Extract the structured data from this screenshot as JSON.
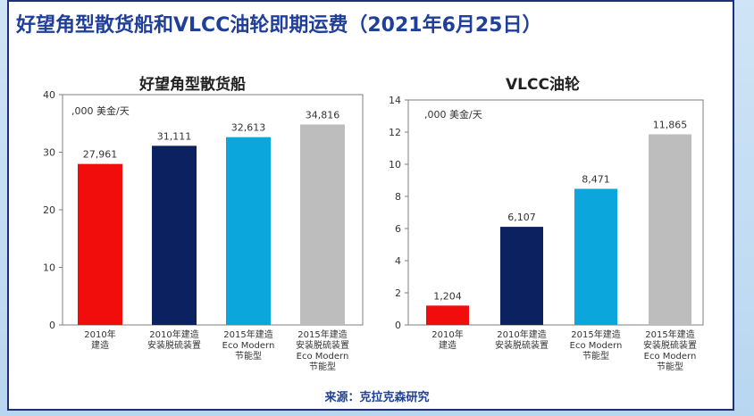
{
  "page": {
    "title": "好望角型散货船和VLCC油轮即期运费（2021年6月25日）",
    "source": "来源：克拉克森研究"
  },
  "chart_data": [
    {
      "type": "bar",
      "title": "好望角型散货船",
      "unit_label": ",000 美金/天",
      "ylim": [
        0,
        40
      ],
      "yticks": [
        0,
        10,
        20,
        30,
        40
      ],
      "categories": [
        [
          "2010年",
          "建造"
        ],
        [
          "2010年建造",
          "安装脱硫装置"
        ],
        [
          "2015年建造",
          "Eco Modern",
          "节能型"
        ],
        [
          "2015年建造",
          "安装脱硫装置",
          "Eco Modern",
          "节能型"
        ]
      ],
      "values": [
        27.961,
        31.111,
        32.613,
        34.816
      ],
      "data_labels": [
        "27,961",
        "31,111",
        "32,613",
        "34,816"
      ],
      "colors": [
        "#f20d0d",
        "#0c2160",
        "#0aa6dc",
        "#bdbdbd"
      ],
      "grid": false
    },
    {
      "type": "bar",
      "title": "VLCC油轮",
      "unit_label": ",000 美金/天",
      "ylim": [
        0,
        14
      ],
      "yticks": [
        0,
        2,
        4,
        6,
        8,
        10,
        12,
        14
      ],
      "categories": [
        [
          "2010年",
          "建造"
        ],
        [
          "2010年建造",
          "安装脱硫装置"
        ],
        [
          "2015年建造",
          "Eco Modern",
          "节能型"
        ],
        [
          "2015年建造",
          "安装脱硫装置",
          "Eco Modern",
          "节能型"
        ]
      ],
      "values": [
        1.204,
        6.107,
        8.471,
        11.865
      ],
      "data_labels": [
        "1,204",
        "6,107",
        "8,471",
        "11,865"
      ],
      "colors": [
        "#f20d0d",
        "#0c2160",
        "#0aa6dc",
        "#bdbdbd"
      ],
      "grid": false
    }
  ]
}
